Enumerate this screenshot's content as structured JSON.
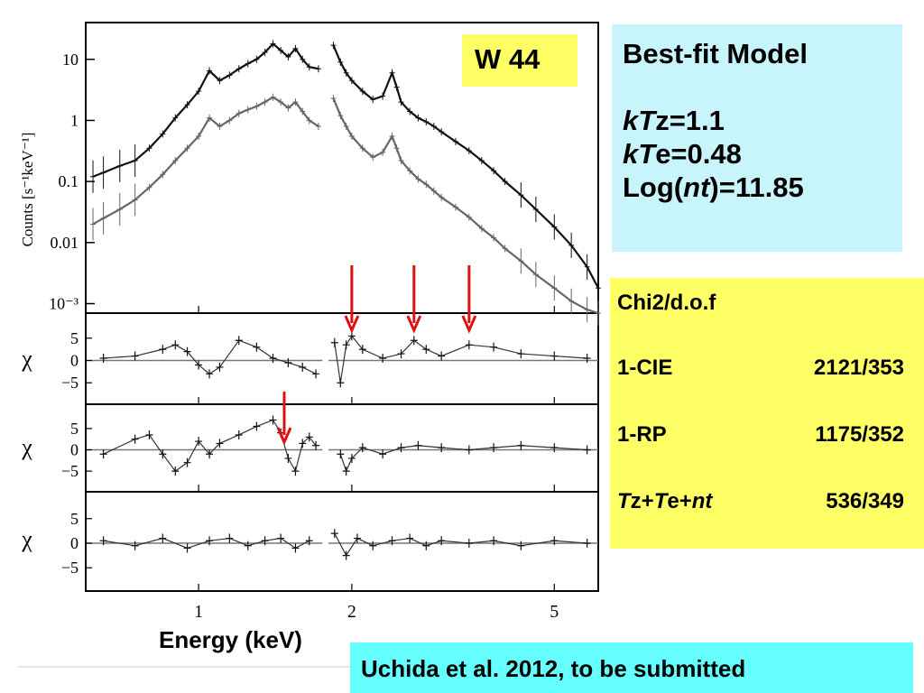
{
  "chart_data": [
    {
      "type": "line",
      "panel": "spectrum",
      "title": "",
      "xlabel": "Energy (keV)",
      "ylabel": "Counts [s⁻¹keV⁻¹]",
      "xscale": "log",
      "yscale": "log",
      "xlim": [
        0.6,
        6.1
      ],
      "ylim": [
        0.0007,
        40
      ],
      "x_ticks": [
        "1",
        "2",
        "5"
      ],
      "y_ticks": [
        "10",
        "1",
        "0.1",
        "0.01",
        "10⁻³"
      ],
      "series": [
        {
          "color": "#111111",
          "x": [
            0.62,
            0.65,
            0.7,
            0.75,
            0.8,
            0.85,
            0.9,
            0.95,
            1.0,
            1.05,
            1.1,
            1.15,
            1.2,
            1.25,
            1.3,
            1.35,
            1.4,
            1.45,
            1.5,
            1.55,
            1.6,
            1.65,
            1.72,
            1.84,
            1.9,
            1.95,
            2.0,
            2.1,
            2.2,
            2.3,
            2.4,
            2.45,
            2.5,
            2.6,
            2.7,
            2.8,
            2.9,
            3.0,
            3.2,
            3.4,
            3.6,
            3.8,
            4.0,
            4.3,
            4.6,
            5.0,
            5.4,
            5.8,
            6.1
          ],
          "y": [
            0.12,
            0.14,
            0.18,
            0.22,
            0.35,
            0.6,
            1.1,
            1.8,
            3.0,
            6.5,
            4.5,
            5.5,
            7.0,
            8.5,
            10,
            13,
            18,
            14,
            11,
            15,
            10,
            7.5,
            7.0,
            17,
            9,
            6,
            4.5,
            3.0,
            2.2,
            2.5,
            6.0,
            3.5,
            2.0,
            1.4,
            1.1,
            0.95,
            0.8,
            0.65,
            0.45,
            0.32,
            0.22,
            0.15,
            0.1,
            0.06,
            0.035,
            0.018,
            0.009,
            0.004,
            0.0018
          ]
        },
        {
          "color": "#666666",
          "x": [
            0.62,
            0.65,
            0.7,
            0.75,
            0.8,
            0.85,
            0.9,
            0.95,
            1.0,
            1.05,
            1.1,
            1.15,
            1.2,
            1.25,
            1.3,
            1.35,
            1.4,
            1.45,
            1.5,
            1.55,
            1.6,
            1.65,
            1.72,
            1.84,
            1.9,
            1.95,
            2.0,
            2.1,
            2.2,
            2.3,
            2.4,
            2.45,
            2.5,
            2.6,
            2.7,
            2.8,
            2.9,
            3.0,
            3.2,
            3.4,
            3.6,
            3.8,
            4.0,
            4.3,
            4.6,
            5.0,
            5.4,
            5.8,
            6.1
          ],
          "y": [
            0.02,
            0.025,
            0.035,
            0.05,
            0.08,
            0.13,
            0.22,
            0.35,
            0.55,
            1.1,
            0.8,
            1.0,
            1.3,
            1.5,
            1.7,
            2.0,
            2.4,
            2.0,
            1.6,
            2.0,
            1.4,
            1.0,
            0.8,
            2.3,
            1.2,
            0.8,
            0.55,
            0.35,
            0.25,
            0.3,
            0.55,
            0.35,
            0.22,
            0.15,
            0.11,
            0.09,
            0.07,
            0.055,
            0.038,
            0.026,
            0.017,
            0.012,
            0.008,
            0.005,
            0.003,
            0.0018,
            0.0011,
            0.0008,
            0.0007
          ]
        }
      ],
      "arrow_x": [
        2.0,
        2.65,
        3.4
      ]
    },
    {
      "type": "scatter",
      "panel": "residual-1",
      "ylabel": "χ",
      "ylim": [
        -9,
        9
      ],
      "y_ticks": [
        "5",
        "0",
        "−5"
      ],
      "x": [
        0.65,
        0.75,
        0.85,
        0.9,
        0.95,
        1.0,
        1.05,
        1.1,
        1.2,
        1.3,
        1.4,
        1.5,
        1.6,
        1.7,
        1.85,
        1.9,
        1.95,
        2.0,
        2.1,
        2.3,
        2.5,
        2.65,
        2.8,
        3.0,
        3.4,
        3.8,
        4.3,
        5.0,
        5.8
      ],
      "y": [
        0.5,
        1.0,
        2.5,
        3.5,
        2.0,
        -1.0,
        -3.0,
        -1.5,
        4.5,
        3.0,
        0.5,
        -0.5,
        -1.5,
        -3.0,
        4.0,
        -5.0,
        3.5,
        5.5,
        2.5,
        0.5,
        1.5,
        4.5,
        2.5,
        1.0,
        3.5,
        3.0,
        1.5,
        1.0,
        0.5
      ]
    },
    {
      "type": "scatter",
      "panel": "residual-2",
      "ylabel": "χ",
      "ylim": [
        -9,
        9
      ],
      "y_ticks": [
        "5",
        "0",
        "−5"
      ],
      "x": [
        0.65,
        0.75,
        0.8,
        0.85,
        0.9,
        0.95,
        1.0,
        1.05,
        1.1,
        1.2,
        1.3,
        1.4,
        1.45,
        1.5,
        1.55,
        1.6,
        1.65,
        1.7,
        1.9,
        1.95,
        2.0,
        2.1,
        2.3,
        2.5,
        2.7,
        3.0,
        3.4,
        3.8,
        4.3,
        5.0,
        5.8
      ],
      "y": [
        -1.0,
        2.5,
        3.5,
        -1.0,
        -5.0,
        -3.0,
        2.0,
        -1.0,
        1.5,
        3.5,
        5.5,
        7.0,
        4.0,
        -2.0,
        -5.0,
        1.5,
        3.0,
        1.0,
        -1.0,
        -5.0,
        -2.0,
        0.5,
        -1.0,
        0.5,
        1.0,
        0.5,
        0.0,
        0.5,
        1.0,
        0.5,
        0.0
      ]
    },
    {
      "type": "scatter",
      "panel": "residual-3",
      "ylabel": "χ",
      "ylim": [
        -9,
        9
      ],
      "y_ticks": [
        "5",
        "0",
        "−5"
      ],
      "x": [
        0.65,
        0.75,
        0.85,
        0.95,
        1.05,
        1.15,
        1.25,
        1.35,
        1.45,
        1.55,
        1.65,
        1.85,
        1.95,
        2.05,
        2.2,
        2.4,
        2.6,
        2.8,
        3.0,
        3.4,
        3.8,
        4.3,
        5.0,
        5.8
      ],
      "y": [
        0.5,
        -0.5,
        1.0,
        -1.0,
        0.5,
        1.0,
        -0.5,
        0.5,
        1.0,
        -1.0,
        0.5,
        2.0,
        -2.5,
        1.0,
        -0.5,
        0.5,
        1.0,
        -0.5,
        0.5,
        0.0,
        0.5,
        -0.5,
        0.5,
        0.0
      ]
    }
  ],
  "boxes": {
    "source": "W 44",
    "model_title": "Best-fit Model",
    "kTz_var": "kT",
    "kTz_rest": "z=1.1",
    "kTe_var": "kT",
    "kTe_rest": "e=0.48",
    "log_open": "Log(",
    "log_var": "nt",
    "log_close": ")=11.85",
    "chi_header": "Chi2/d.o.f",
    "rows": [
      {
        "name": "1-CIE",
        "value": "2121/353"
      },
      {
        "name": "1-RP",
        "value": "1175/352"
      }
    ],
    "tz": "T",
    "tz_rest": "z+",
    "te": "T",
    "te_rest": "e+",
    "nt": "nt",
    "last_value": "536/349",
    "citation": "Uchida et al. 2012,  to be submitted"
  },
  "colors": {
    "data_dark": "#111111",
    "data_gray": "#666666",
    "arrow": "#dd1111",
    "yellow": "#ffff66",
    "light_cyan": "#c8f4fb",
    "cyan": "#66ffff"
  }
}
